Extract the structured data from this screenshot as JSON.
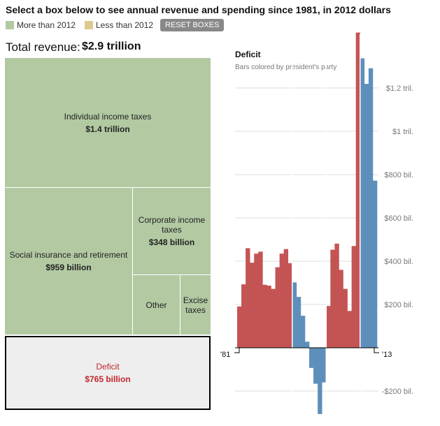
{
  "header": {
    "title": "Select a box below to see annual revenue and spending since 1981, in 2012 dollars",
    "legend": [
      {
        "label": "More than 2012",
        "color": "#b2c9a2"
      },
      {
        "label": "Less than 2012",
        "color": "#dfc792"
      }
    ],
    "reset_label": "RESET BOXES"
  },
  "total": {
    "label": "Total revenue:",
    "value": "$2.9 trillion"
  },
  "treemap": {
    "individual": {
      "label": "Individual income taxes",
      "value": "$1.4 trillion"
    },
    "social": {
      "label": "Social insurance and retirement",
      "value": "$959 billion"
    },
    "corporate": {
      "label": "Corporate income taxes",
      "value": "$348 billion"
    },
    "other": {
      "label": "Other"
    },
    "excise": {
      "label": "Excise taxes"
    },
    "deficit": {
      "label": "Deficit",
      "value": "$765 billion"
    }
  },
  "chart_data": {
    "type": "bar",
    "title": "Deficit",
    "subtitle": "Bars colored by president's party",
    "x_start_label": "'81",
    "x_end_label": "'13",
    "ylim": [
      -320,
      1460
    ],
    "yticks": [
      {
        "v": 1200,
        "label": "$1.2 tril."
      },
      {
        "v": 1000,
        "label": "$1 tril."
      },
      {
        "v": 800,
        "label": "$800 bil."
      },
      {
        "v": 600,
        "label": "$600 bil."
      },
      {
        "v": 400,
        "label": "$400 bil."
      },
      {
        "v": 200,
        "label": "$200 bil."
      },
      {
        "v": -200,
        "label": "-$200 bil."
      }
    ],
    "colors": {
      "R": "#c45454",
      "D": "#5e8fbb"
    },
    "years": [
      1981,
      1982,
      1983,
      1984,
      1985,
      1986,
      1987,
      1988,
      1989,
      1990,
      1991,
      1992,
      1993,
      1994,
      1995,
      1996,
      1997,
      1998,
      1999,
      2000,
      2001,
      2002,
      2003,
      2004,
      2005,
      2006,
      2007,
      2008,
      2009,
      2010,
      2011,
      2012,
      2013
    ],
    "values": [
      191,
      293,
      460,
      393,
      435,
      444,
      291,
      287,
      272,
      372,
      435,
      456,
      391,
      302,
      235,
      148,
      28,
      -93,
      -166,
      -306,
      -160,
      193,
      453,
      481,
      360,
      272,
      170,
      470,
      1456,
      1337,
      1219,
      1291,
      772
    ],
    "party": [
      "R",
      "R",
      "R",
      "R",
      "R",
      "R",
      "R",
      "R",
      "R",
      "R",
      "R",
      "R",
      "R",
      "D",
      "D",
      "D",
      "D",
      "D",
      "D",
      "D",
      "D",
      "R",
      "R",
      "R",
      "R",
      "R",
      "R",
      "R",
      "R",
      "D",
      "D",
      "D",
      "D"
    ]
  }
}
